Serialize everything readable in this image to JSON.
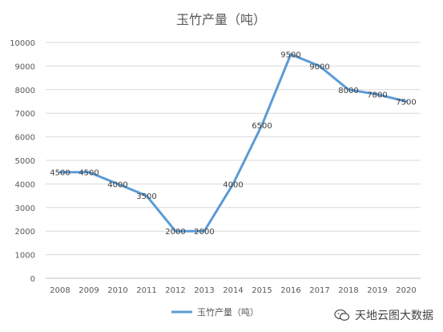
{
  "chart_data": {
    "type": "line",
    "title": "玉竹产量（吨）",
    "categories": [
      "2008",
      "2009",
      "2010",
      "2011",
      "2012",
      "2013",
      "2014",
      "2015",
      "2016",
      "2017",
      "2018",
      "2019",
      "2020"
    ],
    "series": [
      {
        "name": "玉竹产量（吨）",
        "values": [
          4500,
          4500,
          4000,
          3500,
          2000,
          2000,
          4000,
          6500,
          9500,
          9000,
          8000,
          7800,
          7500
        ]
      }
    ],
    "xlabel": "",
    "ylabel": "",
    "ylim": [
      0,
      10000
    ],
    "yticks": [
      0,
      1000,
      2000,
      3000,
      4000,
      5000,
      6000,
      7000,
      8000,
      9000,
      10000
    ],
    "grid": true,
    "legend": "bottom",
    "color": "#5b9bd5"
  },
  "watermark": {
    "text": "天地云图大数据"
  }
}
